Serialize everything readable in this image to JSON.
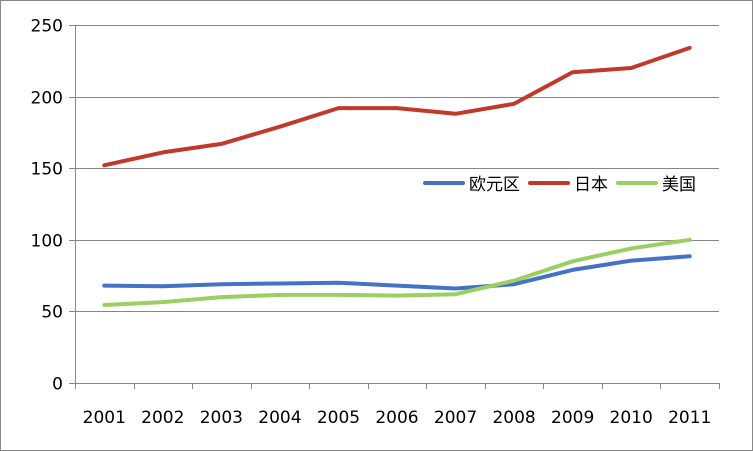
{
  "chart_data": {
    "type": "line",
    "title": "",
    "xlabel": "",
    "ylabel": "",
    "categories": [
      "2001",
      "2002",
      "2003",
      "2004",
      "2005",
      "2006",
      "2007",
      "2008",
      "2009",
      "2010",
      "2011"
    ],
    "ylim": [
      0,
      250
    ],
    "yticks": [
      "0",
      "50",
      "100",
      "150",
      "200",
      "250"
    ],
    "grid": true,
    "legend_position": "right",
    "series": [
      {
        "name": "欧元区",
        "color": "#4472C4",
        "values": [
          68,
          67.5,
          69,
          69.5,
          70,
          68,
          66,
          69,
          79,
          85.5,
          88.5
        ]
      },
      {
        "name": "日本",
        "color": "#C0392B",
        "values": [
          152,
          161,
          167,
          179,
          192,
          192,
          188,
          195,
          217,
          220,
          234
        ]
      },
      {
        "name": "美国",
        "color": "#9BCF62",
        "values": [
          54.5,
          56.5,
          60,
          61.5,
          61.5,
          61,
          62,
          71.5,
          85,
          94,
          100
        ]
      }
    ]
  }
}
